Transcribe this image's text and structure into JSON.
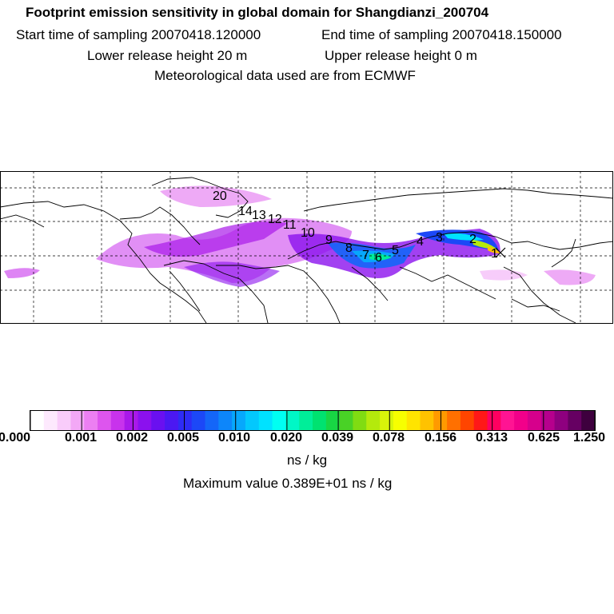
{
  "header": {
    "title": "Footprint emission sensitivity in global domain for Shangdianzi_200704",
    "start_label": "Start time of sampling 20070418.120000",
    "end_label": "End time of sampling 20070418.150000",
    "lower_release": "Lower release height   20 m",
    "upper_release": "Upper release height    0 m",
    "met_data": "Meteorological data used are from ECMWF"
  },
  "map": {
    "trajectory_labels": [
      "1",
      "2",
      "3",
      "4",
      "5",
      "6",
      "7",
      "8",
      "9",
      "10",
      "11",
      "12",
      "13",
      "14",
      "20"
    ],
    "station_marker": "x-marker"
  },
  "colorbar": {
    "ticks": [
      "0.000",
      "0.001",
      "0.002",
      "0.005",
      "0.010",
      "0.020",
      "0.039",
      "0.078",
      "0.156",
      "0.313",
      "0.625",
      "1.250"
    ],
    "colors": [
      "#ffffff",
      "#fde9fd",
      "#f9ccfa",
      "#f3a8f6",
      "#ec7ff2",
      "#dd55ee",
      "#c833ec",
      "#a919ea",
      "#8b11ee",
      "#6a10f0",
      "#4b18f2",
      "#2e2cf5",
      "#1c48f7",
      "#1466f8",
      "#0d86fa",
      "#07a8fc",
      "#03c8fd",
      "#00e2ff",
      "#00fff2",
      "#00f7c6",
      "#00ee99",
      "#00e270",
      "#18d644",
      "#49d226",
      "#80dc12",
      "#b4ea0c",
      "#d8f40a",
      "#f7ff00",
      "#ffe400",
      "#ffc200",
      "#ff9a00",
      "#ff7000",
      "#ff4500",
      "#ff1818",
      "#ff0060",
      "#ff1493",
      "#f2008a",
      "#d6008c",
      "#b6008d",
      "#8e007f",
      "#660062",
      "#3e003e"
    ],
    "units": "ns / kg",
    "max_value": "Maximum value  0.389E+01 ns / kg"
  }
}
